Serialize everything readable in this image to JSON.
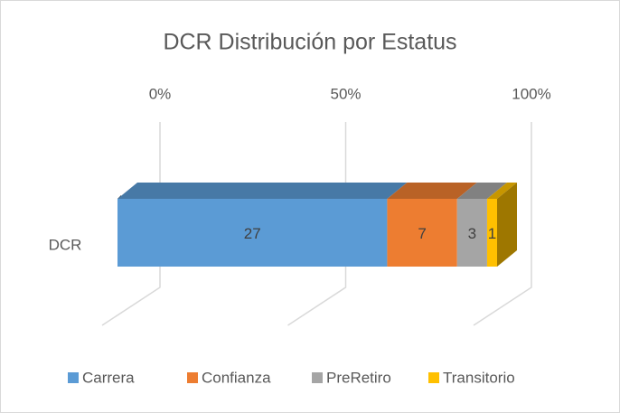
{
  "chart_data": {
    "type": "bar",
    "orientation": "horizontal",
    "stacking": "percent",
    "three_d": true,
    "title": "DCR Distribución por Estatus",
    "categories": [
      "DCR"
    ],
    "series": [
      {
        "name": "Carrera",
        "color": "#5b9bd5",
        "values": [
          27
        ]
      },
      {
        "name": "Confianza",
        "color": "#ed7d31",
        "values": [
          7
        ]
      },
      {
        "name": "PreRetiro",
        "color": "#a5a5a5",
        "values": [
          3
        ]
      },
      {
        "name": "Transitorio",
        "color": "#ffc000",
        "values": [
          1
        ]
      }
    ],
    "xlim": [
      0,
      100
    ],
    "xticks": [
      {
        "value": 0,
        "label": "0%"
      },
      {
        "value": 50,
        "label": "50%"
      },
      {
        "value": 100,
        "label": "100%"
      }
    ],
    "grid": true,
    "legend": "bottom"
  }
}
